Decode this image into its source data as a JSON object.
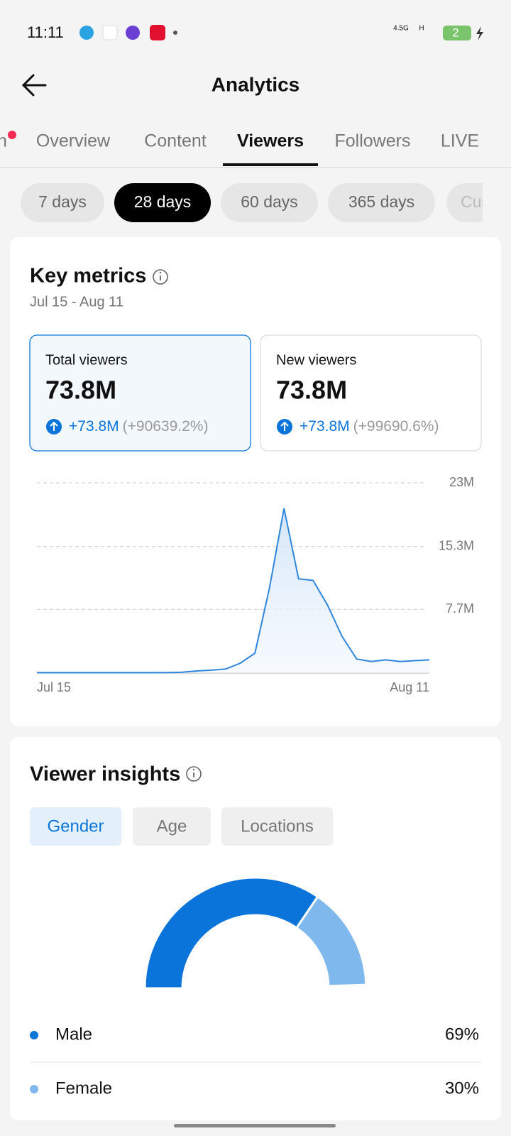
{
  "status_bar": {
    "time": "11:11",
    "network": "4.5G",
    "network2": "H",
    "battery": "2"
  },
  "header": {
    "title": "Analytics"
  },
  "tabs": [
    "n",
    "Overview",
    "Content",
    "Viewers",
    "Followers",
    "LIVE"
  ],
  "active_tab": 3,
  "ranges": [
    "7 days",
    "28 days",
    "60 days",
    "365 days",
    "Custom"
  ],
  "active_range": 1,
  "key_metrics": {
    "title": "Key metrics",
    "date_range": "Jul 15 - Aug 11",
    "cards": [
      {
        "label": "Total viewers",
        "value": "73.8M",
        "change": "+73.8M",
        "percent": "(+90639.2%)"
      },
      {
        "label": "New viewers",
        "value": "73.8M",
        "change": "+73.8M",
        "percent": "(+99690.6%)"
      }
    ]
  },
  "viewer_insights": {
    "title": "Viewer insights",
    "tabs": [
      "Gender",
      "Age",
      "Locations"
    ],
    "active_tab": 0
  },
  "chart_data": [
    {
      "type": "line",
      "color": "#2f86dd",
      "grid": true,
      "categories": [
        "Jul 15",
        null,
        null,
        null,
        null,
        null,
        null,
        null,
        null,
        null,
        null,
        null,
        null,
        null,
        null,
        null,
        null,
        null,
        null,
        null,
        null,
        null,
        null,
        null,
        null,
        null,
        null,
        "Aug 11"
      ],
      "values": [
        50000,
        50000,
        50000,
        50000,
        50000,
        50000,
        50000,
        50000,
        50000,
        60000,
        100000,
        260000,
        350000,
        500000,
        1200000,
        2400000,
        10300000,
        19900000,
        11400000,
        11200000,
        8200000,
        4400000,
        1700000,
        1400000,
        1600000,
        1400000,
        1500000,
        1600000
      ],
      "ylim": [
        0,
        23000000
      ],
      "yticks": [
        {
          "value": 7700000,
          "label": "7.7M"
        },
        {
          "value": 15300000,
          "label": "15.3M"
        },
        {
          "value": 23000000,
          "label": "23M"
        }
      ]
    },
    {
      "type": "pie",
      "categories": [
        "Male",
        "Female"
      ],
      "values": [
        69,
        30
      ],
      "value_labels": [
        "69%",
        "30%"
      ],
      "colors": [
        "#0a74da",
        "#7fb8ec"
      ]
    }
  ]
}
